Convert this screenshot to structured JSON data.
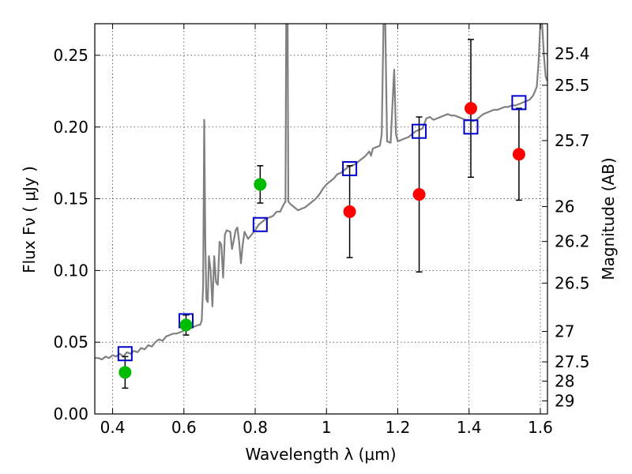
{
  "chart_data": {
    "type": "scatter",
    "xlabel": "Wavelength  λ (μm)",
    "ylabel_left": "Flux  Fν  ( μJy )",
    "ylabel_right": "Magnitude (AB)",
    "xlim": [
      0.35,
      1.62
    ],
    "ylim": [
      0,
      0.272
    ],
    "grid": true,
    "x_ticks": [
      {
        "value": 0.4,
        "label": "0.4"
      },
      {
        "value": 0.6,
        "label": "0.6"
      },
      {
        "value": 0.8,
        "label": "0.8"
      },
      {
        "value": 1.0,
        "label": "1"
      },
      {
        "value": 1.2,
        "label": "1.2"
      },
      {
        "value": 1.4,
        "label": "1.4"
      },
      {
        "value": 1.6,
        "label": "1.6"
      }
    ],
    "y_ticks": [
      {
        "value": 0.0,
        "label": "0.00"
      },
      {
        "value": 0.05,
        "label": "0.05"
      },
      {
        "value": 0.1,
        "label": "0.10"
      },
      {
        "value": 0.15,
        "label": "0.15"
      },
      {
        "value": 0.2,
        "label": "0.20"
      },
      {
        "value": 0.25,
        "label": "0.25"
      }
    ],
    "mag_ticks": [
      {
        "mag": 25.4,
        "label": "25.4"
      },
      {
        "mag": 25.5,
        "label": "25.5"
      },
      {
        "mag": 25.7,
        "label": "25.7"
      },
      {
        "mag": 26,
        "label": "26"
      },
      {
        "mag": 26.2,
        "label": "26.2"
      },
      {
        "mag": 26.5,
        "label": "26.5"
      },
      {
        "mag": 27,
        "label": "27"
      },
      {
        "mag": 27.5,
        "label": "27.5"
      },
      {
        "mag": 28,
        "label": "28"
      },
      {
        "mag": 29,
        "label": "29"
      }
    ],
    "observed_green": [
      {
        "x": 0.435,
        "y": 0.029,
        "err_lo": 0.011,
        "err_hi": 0.011
      },
      {
        "x": 0.606,
        "y": 0.062,
        "err_lo": 0.007,
        "err_hi": 0.007
      },
      {
        "x": 0.814,
        "y": 0.16,
        "err_lo": 0.013,
        "err_hi": 0.013
      }
    ],
    "observed_red": [
      {
        "x": 1.065,
        "y": 0.141,
        "err_lo": 0.032,
        "err_hi": 0.032
      },
      {
        "x": 1.26,
        "y": 0.153,
        "err_lo": 0.054,
        "err_hi": 0.054
      },
      {
        "x": 1.405,
        "y": 0.213,
        "err_lo": 0.048,
        "err_hi": 0.048
      },
      {
        "x": 1.54,
        "y": 0.181,
        "err_lo": 0.032,
        "err_hi": 0.032
      }
    ],
    "model_boxes": [
      {
        "x": 0.435,
        "y": 0.042
      },
      {
        "x": 0.606,
        "y": 0.065
      },
      {
        "x": 0.814,
        "y": 0.132
      },
      {
        "x": 1.065,
        "y": 0.171
      },
      {
        "x": 1.26,
        "y": 0.197
      },
      {
        "x": 1.405,
        "y": 0.2
      },
      {
        "x": 1.54,
        "y": 0.217
      }
    ],
    "spectrum": [
      [
        0.35,
        0.039
      ],
      [
        0.36,
        0.039
      ],
      [
        0.37,
        0.038
      ],
      [
        0.38,
        0.04
      ],
      [
        0.39,
        0.039
      ],
      [
        0.4,
        0.041
      ],
      [
        0.41,
        0.04
      ],
      [
        0.42,
        0.042
      ],
      [
        0.43,
        0.04
      ],
      [
        0.44,
        0.043
      ],
      [
        0.45,
        0.042
      ],
      [
        0.46,
        0.044
      ],
      [
        0.47,
        0.043
      ],
      [
        0.48,
        0.046
      ],
      [
        0.49,
        0.045
      ],
      [
        0.5,
        0.048
      ],
      [
        0.51,
        0.047
      ],
      [
        0.52,
        0.05
      ],
      [
        0.53,
        0.052
      ],
      [
        0.54,
        0.051
      ],
      [
        0.55,
        0.054
      ],
      [
        0.56,
        0.055
      ],
      [
        0.57,
        0.056
      ],
      [
        0.58,
        0.056
      ],
      [
        0.59,
        0.057
      ],
      [
        0.6,
        0.058
      ],
      [
        0.61,
        0.059
      ],
      [
        0.62,
        0.06
      ],
      [
        0.63,
        0.061
      ],
      [
        0.64,
        0.062
      ],
      [
        0.645,
        0.062
      ],
      [
        0.65,
        0.065
      ],
      [
        0.654,
        0.09
      ],
      [
        0.657,
        0.205
      ],
      [
        0.66,
        0.12
      ],
      [
        0.663,
        0.08
      ],
      [
        0.667,
        0.078
      ],
      [
        0.67,
        0.11
      ],
      [
        0.675,
        0.1
      ],
      [
        0.68,
        0.075
      ],
      [
        0.685,
        0.11
      ],
      [
        0.69,
        0.092
      ],
      [
        0.695,
        0.09
      ],
      [
        0.7,
        0.12
      ],
      [
        0.705,
        0.118
      ],
      [
        0.71,
        0.095
      ],
      [
        0.715,
        0.125
      ],
      [
        0.72,
        0.128
      ],
      [
        0.73,
        0.127
      ],
      [
        0.735,
        0.115
      ],
      [
        0.74,
        0.121
      ],
      [
        0.745,
        0.128
      ],
      [
        0.75,
        0.13
      ],
      [
        0.755,
        0.12
      ],
      [
        0.76,
        0.105
      ],
      [
        0.765,
        0.118
      ],
      [
        0.77,
        0.127
      ],
      [
        0.78,
        0.122
      ],
      [
        0.79,
        0.125
      ],
      [
        0.8,
        0.128
      ],
      [
        0.81,
        0.132
      ],
      [
        0.82,
        0.134
      ],
      [
        0.83,
        0.136
      ],
      [
        0.84,
        0.137
      ],
      [
        0.85,
        0.138
      ],
      [
        0.86,
        0.141
      ],
      [
        0.87,
        0.141
      ],
      [
        0.88,
        0.146
      ],
      [
        0.885,
        0.148
      ],
      [
        0.887,
        0.272
      ],
      [
        0.889,
        0.272
      ],
      [
        0.891,
        0.272
      ],
      [
        0.893,
        0.148
      ],
      [
        0.9,
        0.146
      ],
      [
        0.91,
        0.144
      ],
      [
        0.92,
        0.142
      ],
      [
        0.93,
        0.143
      ],
      [
        0.94,
        0.144
      ],
      [
        0.95,
        0.146
      ],
      [
        0.96,
        0.148
      ],
      [
        0.97,
        0.15
      ],
      [
        0.98,
        0.153
      ],
      [
        0.99,
        0.157
      ],
      [
        1.0,
        0.16
      ],
      [
        1.01,
        0.162
      ],
      [
        1.02,
        0.164
      ],
      [
        1.03,
        0.167
      ],
      [
        1.04,
        0.168
      ],
      [
        1.05,
        0.17
      ],
      [
        1.06,
        0.172
      ],
      [
        1.07,
        0.173
      ],
      [
        1.08,
        0.174
      ],
      [
        1.09,
        0.176
      ],
      [
        1.1,
        0.178
      ],
      [
        1.11,
        0.18
      ],
      [
        1.12,
        0.183
      ],
      [
        1.125,
        0.18
      ],
      [
        1.13,
        0.185
      ],
      [
        1.14,
        0.186
      ],
      [
        1.15,
        0.187
      ],
      [
        1.155,
        0.195
      ],
      [
        1.16,
        0.272
      ],
      [
        1.165,
        0.272
      ],
      [
        1.17,
        0.19
      ],
      [
        1.18,
        0.189
      ],
      [
        1.185,
        0.215
      ],
      [
        1.19,
        0.24
      ],
      [
        1.195,
        0.195
      ],
      [
        1.2,
        0.19
      ],
      [
        1.21,
        0.191
      ],
      [
        1.22,
        0.192
      ],
      [
        1.23,
        0.193
      ],
      [
        1.24,
        0.195
      ],
      [
        1.25,
        0.197
      ],
      [
        1.26,
        0.198
      ],
      [
        1.27,
        0.199
      ],
      [
        1.28,
        0.206
      ],
      [
        1.29,
        0.207
      ],
      [
        1.3,
        0.205
      ],
      [
        1.31,
        0.206
      ],
      [
        1.32,
        0.207
      ],
      [
        1.33,
        0.208
      ],
      [
        1.34,
        0.209
      ],
      [
        1.35,
        0.208
      ],
      [
        1.36,
        0.208
      ],
      [
        1.37,
        0.207
      ],
      [
        1.38,
        0.206
      ],
      [
        1.39,
        0.205
      ],
      [
        1.4,
        0.205
      ],
      [
        1.41,
        0.204
      ],
      [
        1.42,
        0.205
      ],
      [
        1.43,
        0.207
      ],
      [
        1.44,
        0.209
      ],
      [
        1.45,
        0.21
      ],
      [
        1.46,
        0.211
      ],
      [
        1.47,
        0.212
      ],
      [
        1.48,
        0.212
      ],
      [
        1.49,
        0.213
      ],
      [
        1.5,
        0.214
      ],
      [
        1.51,
        0.214
      ],
      [
        1.52,
        0.215
      ],
      [
        1.53,
        0.215
      ],
      [
        1.54,
        0.216
      ],
      [
        1.55,
        0.217
      ],
      [
        1.56,
        0.218
      ],
      [
        1.57,
        0.219
      ],
      [
        1.58,
        0.222
      ],
      [
        1.59,
        0.228
      ],
      [
        1.595,
        0.245
      ],
      [
        1.6,
        0.272
      ],
      [
        1.605,
        0.272
      ],
      [
        1.61,
        0.25
      ],
      [
        1.615,
        0.235
      ],
      [
        1.62,
        0.232
      ]
    ]
  },
  "colors": {
    "spectrum": "#808080",
    "observed_green": "#00bb00",
    "observed_red": "#ff0000",
    "model_box": "#0000cc",
    "errbar": "#000000"
  }
}
